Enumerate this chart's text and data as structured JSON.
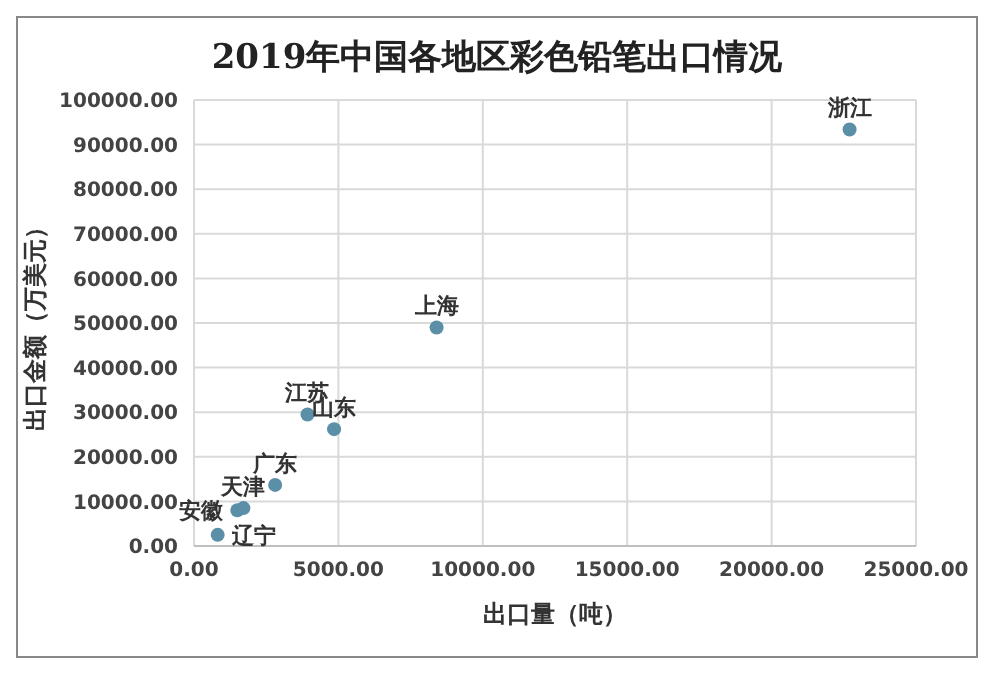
{
  "chart_data": {
    "type": "scatter",
    "title": "2019年中国各地区彩色铅笔出口情况",
    "xlabel": "出口量（吨）",
    "ylabel": "出口金额（万美元）",
    "x": [
      22700,
      8400,
      3930,
      4850,
      2810,
      1710,
      1500,
      820
    ],
    "series": [
      {
        "color": "#5b8fa8",
        "values": [
          93400,
          49000,
          29500,
          26200,
          13700,
          8500,
          8000,
          2500
        ]
      }
    ],
    "annotations": [
      {
        "text": "浙江",
        "x": 22700,
        "y": 93400
      },
      {
        "text": "上海",
        "x": 8400,
        "y": 49000
      },
      {
        "text": "江苏",
        "x": 3930,
        "y": 29500
      },
      {
        "text": "山东",
        "x": 4850,
        "y": 26200
      },
      {
        "text": "广东",
        "x": 2810,
        "y": 13700
      },
      {
        "text": "天津",
        "x": 1710,
        "y": 8500
      },
      {
        "text": "安徽",
        "x": 1500,
        "y": 8000
      },
      {
        "text": "辽宁",
        "x": 820,
        "y": 2500
      }
    ],
    "xlim": [
      0,
      25000
    ],
    "xticks": [
      {
        "value": 0,
        "label": "0.00"
      },
      {
        "value": 5000,
        "label": "5000.00"
      },
      {
        "value": 10000,
        "label": "10000.00"
      },
      {
        "value": 15000,
        "label": "15000.00"
      },
      {
        "value": 20000,
        "label": "20000.00"
      },
      {
        "value": 25000,
        "label": "25000.00"
      }
    ],
    "ylim": [
      0,
      100000
    ],
    "yticks": [
      {
        "value": 0,
        "label": "0.00"
      },
      {
        "value": 10000,
        "label": "10000.00"
      },
      {
        "value": 20000,
        "label": "20000.00"
      },
      {
        "value": 30000,
        "label": "30000.00"
      },
      {
        "value": 40000,
        "label": "40000.00"
      },
      {
        "value": 50000,
        "label": "50000.00"
      },
      {
        "value": 60000,
        "label": "60000.00"
      },
      {
        "value": 70000,
        "label": "70000.00"
      },
      {
        "value": 80000,
        "label": "80000.00"
      },
      {
        "value": 90000,
        "label": "90000.00"
      },
      {
        "value": 100000,
        "label": "100000.00"
      }
    ],
    "grid": true,
    "marker": "circle"
  }
}
